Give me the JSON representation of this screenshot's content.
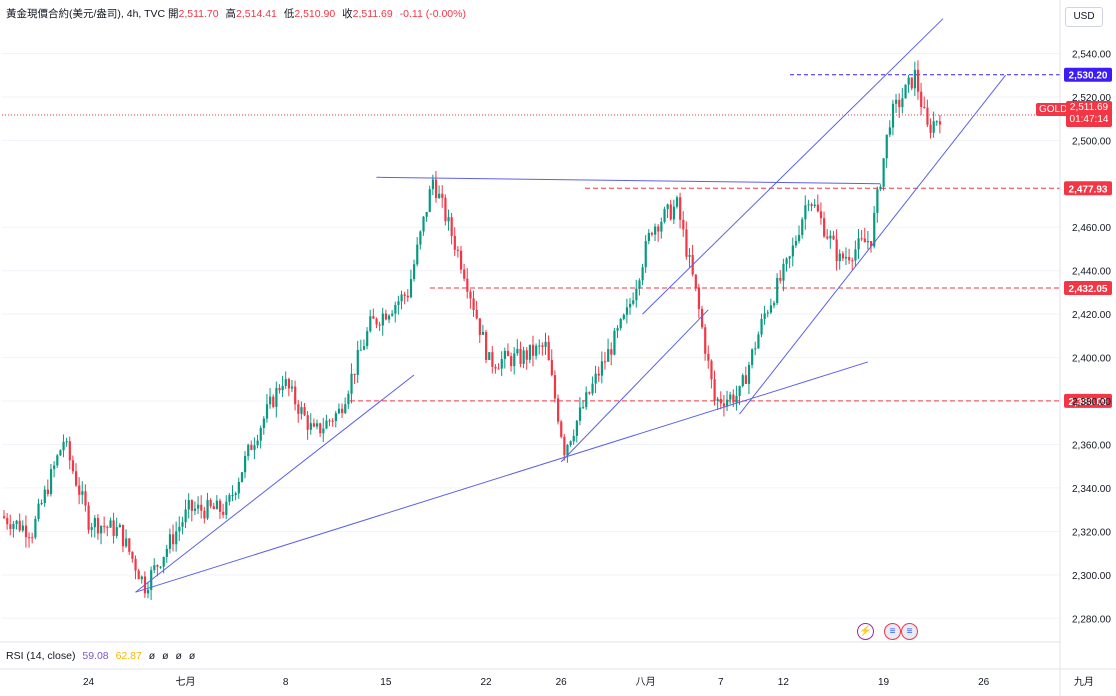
{
  "legend": {
    "symbol": "黃金現價合約(美元/盎司), 4h, TVC",
    "open_label": "開",
    "open": "2,511.70",
    "high_label": "高",
    "high": "2,514.41",
    "low_label": "低",
    "low": "2,510.90",
    "close_label": "收",
    "close": "2,511.69",
    "change": "-0.11 (-0.00%)"
  },
  "currency_button": "USD",
  "indicator": {
    "label": "RSI (14, close)",
    "value1": "59.08",
    "value2": "62.87",
    "extra": [
      "ø",
      "ø",
      "ø",
      "ø"
    ]
  },
  "current_price": {
    "ticker": "GOLD",
    "price": "2,511.69",
    "countdown": "01:47:14"
  },
  "colors": {
    "up": "#089981",
    "down": "#f23645",
    "trendline": "#5b61e8",
    "level": "#f23645",
    "accent": "#3d1cf5"
  },
  "icons": [
    "flash-icon",
    "us-flag-icon",
    "us-flag-icon"
  ],
  "chart_data": {
    "type": "candlestick",
    "title": "黃金現價合約(美元/盎司), 4h, TVC",
    "ylim": [
      2270,
      2560
    ],
    "y_ticks": [
      2280,
      2300,
      2320,
      2340,
      2360,
      2380,
      2400,
      2420,
      2440,
      2460,
      2500,
      2520,
      2540
    ],
    "y_tick_labels": [
      "2,280.00",
      "2,300.00",
      "2,320.00",
      "2,340.00",
      "2,360.00",
      "2,380.00",
      "2,400.00",
      "2,420.00",
      "2,440.00",
      "2,460.00",
      "2,500.00",
      "2,520.00",
      "2,540.00"
    ],
    "x_tick_labels": [
      {
        "label": "24",
        "i": 27
      },
      {
        "label": "七月",
        "i": 58
      },
      {
        "label": "8",
        "i": 90
      },
      {
        "label": "15",
        "i": 122
      },
      {
        "label": "22",
        "i": 154
      },
      {
        "label": "26",
        "i": 178
      },
      {
        "label": "八月",
        "i": 205
      },
      {
        "label": "7",
        "i": 229
      },
      {
        "label": "12",
        "i": 249
      },
      {
        "label": "19",
        "i": 281
      },
      {
        "label": "26",
        "i": 313
      },
      {
        "label": "九月",
        "i": 345
      }
    ],
    "levels": [
      {
        "value": 2530.2,
        "label": "2,530.20",
        "style": "accent"
      },
      {
        "value": 2477.93,
        "label": "2,477.93",
        "style": "level"
      },
      {
        "value": 2432.05,
        "label": "2,432.05",
        "style": "level"
      },
      {
        "value": 2380.09,
        "label": "2,380.09",
        "style": "level"
      }
    ],
    "current_price": 2511.69,
    "trendlines": [
      {
        "x1": 42,
        "y1": 2292,
        "x2": 131,
        "y2": 2392
      },
      {
        "x1": 42,
        "y1": 2292,
        "x2": 276,
        "y2": 2398
      },
      {
        "x1": 178,
        "y1": 2352,
        "x2": 225,
        "y2": 2422
      },
      {
        "x1": 119,
        "y1": 2483,
        "x2": 280,
        "y2": 2480
      },
      {
        "x1": 235,
        "y1": 2374,
        "x2": 320,
        "y2": 2530
      },
      {
        "x1": 204,
        "y1": 2420,
        "x2": 300,
        "y2": 2556
      }
    ],
    "key_points": [
      {
        "x": 0,
        "y": 2327
      },
      {
        "x": 10,
        "y": 2320
      },
      {
        "x": 20,
        "y": 2362
      },
      {
        "x": 28,
        "y": 2325
      },
      {
        "x": 38,
        "y": 2320
      },
      {
        "x": 46,
        "y": 2295
      },
      {
        "x": 60,
        "y": 2330
      },
      {
        "x": 72,
        "y": 2330
      },
      {
        "x": 80,
        "y": 2360
      },
      {
        "x": 90,
        "y": 2390
      },
      {
        "x": 100,
        "y": 2365
      },
      {
        "x": 108,
        "y": 2375
      },
      {
        "x": 118,
        "y": 2415
      },
      {
        "x": 130,
        "y": 2430
      },
      {
        "x": 138,
        "y": 2482
      },
      {
        "x": 148,
        "y": 2440
      },
      {
        "x": 156,
        "y": 2398
      },
      {
        "x": 166,
        "y": 2400
      },
      {
        "x": 174,
        "y": 2405
      },
      {
        "x": 180,
        "y": 2358
      },
      {
        "x": 190,
        "y": 2390
      },
      {
        "x": 200,
        "y": 2420
      },
      {
        "x": 208,
        "y": 2460
      },
      {
        "x": 216,
        "y": 2470
      },
      {
        "x": 222,
        "y": 2430
      },
      {
        "x": 228,
        "y": 2380
      },
      {
        "x": 236,
        "y": 2383
      },
      {
        "x": 244,
        "y": 2420
      },
      {
        "x": 252,
        "y": 2445
      },
      {
        "x": 258,
        "y": 2475
      },
      {
        "x": 268,
        "y": 2445
      },
      {
        "x": 278,
        "y": 2455
      },
      {
        "x": 284,
        "y": 2510
      },
      {
        "x": 292,
        "y": 2530
      },
      {
        "x": 296,
        "y": 2505
      },
      {
        "x": 300,
        "y": 2511.69
      }
    ]
  }
}
